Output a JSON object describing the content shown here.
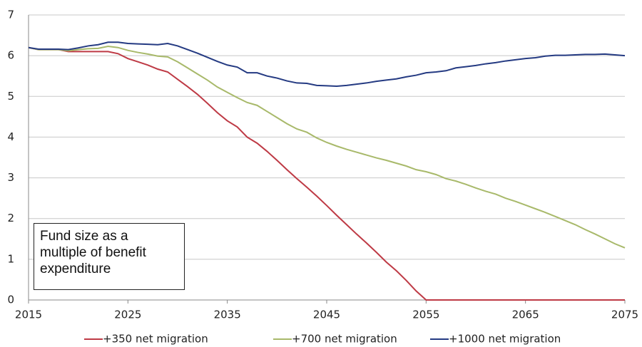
{
  "chart_data": {
    "type": "line",
    "annotation": "Fund size as a multiple of benefit expenditure",
    "x": [
      2015,
      2016,
      2017,
      2018,
      2019,
      2020,
      2021,
      2022,
      2023,
      2024,
      2025,
      2026,
      2027,
      2028,
      2029,
      2030,
      2031,
      2032,
      2033,
      2034,
      2035,
      2036,
      2037,
      2038,
      2039,
      2040,
      2041,
      2042,
      2043,
      2044,
      2045,
      2046,
      2047,
      2048,
      2049,
      2050,
      2051,
      2052,
      2053,
      2054,
      2055,
      2056,
      2057,
      2058,
      2059,
      2060,
      2061,
      2062,
      2063,
      2064,
      2065,
      2066,
      2067,
      2068,
      2069,
      2070,
      2071,
      2072,
      2073,
      2074,
      2075
    ],
    "series": [
      {
        "name": "+350 net migration",
        "color": "#be3a45",
        "values": [
          6.2,
          6.15,
          6.15,
          6.15,
          6.1,
          6.1,
          6.1,
          6.1,
          6.1,
          6.05,
          5.93,
          5.85,
          5.77,
          5.67,
          5.6,
          5.42,
          5.24,
          5.05,
          4.83,
          4.6,
          4.4,
          4.25,
          4.0,
          3.85,
          3.65,
          3.43,
          3.2,
          2.98,
          2.77,
          2.55,
          2.32,
          2.08,
          1.85,
          1.62,
          1.4,
          1.17,
          0.93,
          0.72,
          0.48,
          0.22,
          0,
          0,
          0,
          0,
          0,
          0,
          0,
          0,
          0,
          0,
          0,
          0,
          0,
          0,
          0,
          0,
          0,
          0,
          0,
          0,
          0
        ]
      },
      {
        "name": "+700 net migration",
        "color": "#a8b96a",
        "values": [
          6.2,
          6.15,
          6.15,
          6.15,
          6.12,
          6.15,
          6.17,
          6.18,
          6.23,
          6.2,
          6.13,
          6.08,
          6.04,
          5.99,
          5.97,
          5.85,
          5.7,
          5.55,
          5.4,
          5.23,
          5.1,
          4.97,
          4.85,
          4.78,
          4.63,
          4.48,
          4.33,
          4.2,
          4.12,
          3.98,
          3.87,
          3.78,
          3.7,
          3.63,
          3.56,
          3.49,
          3.43,
          3.36,
          3.29,
          3.2,
          3.15,
          3.08,
          2.98,
          2.92,
          2.84,
          2.75,
          2.67,
          2.6,
          2.5,
          2.42,
          2.33,
          2.24,
          2.15,
          2.05,
          1.95,
          1.85,
          1.73,
          1.62,
          1.5,
          1.38,
          1.28
        ]
      },
      {
        "name": "+1000 net migration",
        "color": "#243a82",
        "values": [
          6.2,
          6.16,
          6.16,
          6.16,
          6.15,
          6.19,
          6.24,
          6.27,
          6.33,
          6.33,
          6.3,
          6.29,
          6.28,
          6.27,
          6.3,
          6.24,
          6.15,
          6.06,
          5.96,
          5.86,
          5.77,
          5.72,
          5.58,
          5.58,
          5.5,
          5.45,
          5.38,
          5.33,
          5.32,
          5.27,
          5.26,
          5.25,
          5.27,
          5.3,
          5.33,
          5.37,
          5.4,
          5.43,
          5.48,
          5.52,
          5.58,
          5.6,
          5.63,
          5.7,
          5.73,
          5.76,
          5.8,
          5.83,
          5.87,
          5.9,
          5.93,
          5.95,
          5.99,
          6.01,
          6.01,
          6.02,
          6.03,
          6.03,
          6.04,
          6.02,
          6.0
        ]
      }
    ],
    "xlim": [
      2015,
      2075
    ],
    "xticks": [
      2015,
      2025,
      2035,
      2045,
      2055,
      2065,
      2075
    ],
    "ylim": [
      0,
      7
    ],
    "yticks": [
      0,
      1,
      2,
      3,
      4,
      5,
      6,
      7
    ],
    "grid": true,
    "legend": "bottom"
  }
}
